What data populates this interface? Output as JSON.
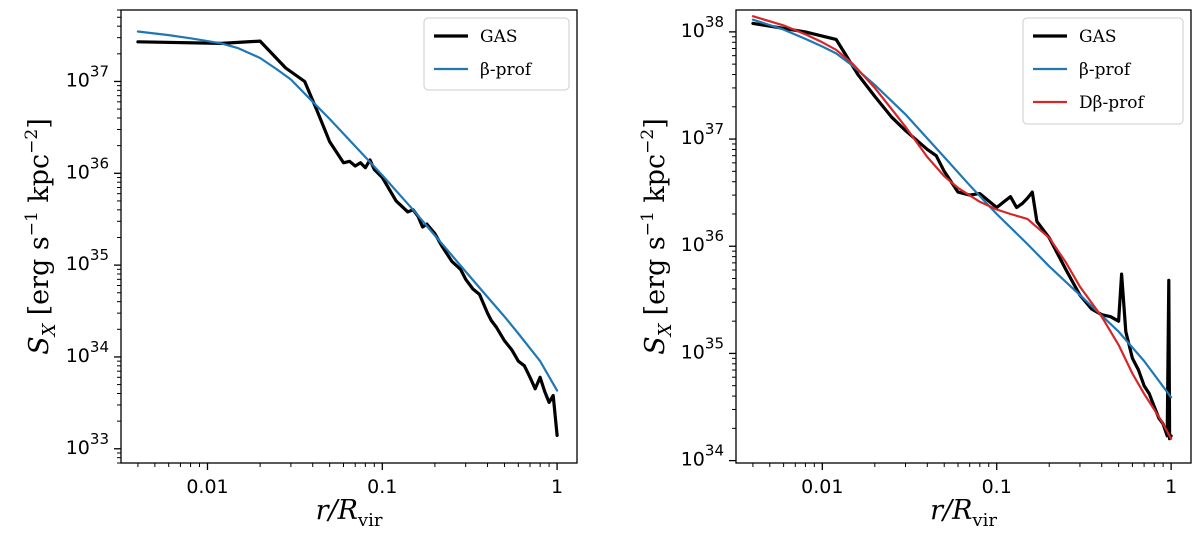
{
  "chart_data": [
    {
      "type": "line",
      "xscale": "log",
      "yscale": "log",
      "xlim": [
        0.0032,
        1.3
      ],
      "ylim": [
        7e+32,
        6e+37
      ],
      "x_ticks": [
        {
          "value": 0.01,
          "label": "0.01"
        },
        {
          "value": 0.1,
          "label": "0.1"
        },
        {
          "value": 1,
          "label": "1"
        }
      ],
      "y_ticks": [
        {
          "value": 1e+33,
          "base": "10",
          "exp": "33"
        },
        {
          "value": 1e+34,
          "base": "10",
          "exp": "34"
        },
        {
          "value": 1e+35,
          "base": "10",
          "exp": "35"
        },
        {
          "value": 1e+36,
          "base": "10",
          "exp": "36"
        },
        {
          "value": 1e+37,
          "base": "10",
          "exp": "37"
        }
      ],
      "xlabel": {
        "main": "r/R",
        "sub": "vir"
      },
      "ylabel": {
        "main": "S",
        "sub": "X",
        "units": "[erg s",
        "sup1": "−1",
        "mid": " kpc",
        "sup2": "−2",
        "end": "]"
      },
      "legend_position": "top-right",
      "series": [
        {
          "name": "GAS",
          "color": "#000000",
          "x": [
            0.004,
            0.012,
            0.02,
            0.028,
            0.036,
            0.042,
            0.05,
            0.06,
            0.065,
            0.07,
            0.075,
            0.08,
            0.085,
            0.09,
            0.1,
            0.12,
            0.14,
            0.15,
            0.16,
            0.17,
            0.18,
            0.2,
            0.22,
            0.25,
            0.28,
            0.3,
            0.33,
            0.36,
            0.4,
            0.42,
            0.45,
            0.5,
            0.55,
            0.6,
            0.65,
            0.7,
            0.75,
            0.8,
            0.85,
            0.9,
            0.95,
            1.0
          ],
          "y": [
            2.7e+37,
            2.6e+37,
            2.75e+37,
            1.4e+37,
            1e+37,
            5e+36,
            2.2e+36,
            1.3e+36,
            1.35e+36,
            1.2e+36,
            1.3e+36,
            1.15e+36,
            1.4e+36,
            1.1e+36,
            9e+35,
            5e+35,
            3.8e+35,
            4e+35,
            3.4e+35,
            2.6e+35,
            2.8e+35,
            2.2e+35,
            1.6e+35,
            1.1e+35,
            9e+34,
            7e+34,
            5.5e+34,
            4.8e+34,
            3e+34,
            2.5e+34,
            2.1e+34,
            1.5e+34,
            1.2e+34,
            9e+33,
            8e+33,
            6e+33,
            4.5e+33,
            6e+33,
            4.2e+33,
            3.2e+33,
            3.8e+33,
            1.4e+33
          ]
        },
        {
          "name": "β-prof",
          "color": "#1f77b4",
          "x": [
            0.004,
            0.006,
            0.008,
            0.01,
            0.012,
            0.015,
            0.02,
            0.025,
            0.03,
            0.04,
            0.05,
            0.06,
            0.08,
            0.1,
            0.15,
            0.2,
            0.3,
            0.4,
            0.5,
            0.6,
            0.8,
            1.0
          ],
          "y": [
            3.5e+37,
            3.2e+37,
            2.95e+37,
            2.75e+37,
            2.6e+37,
            2.3e+37,
            1.8e+37,
            1.35e+37,
            1.05e+37,
            6e+36,
            3.9e+36,
            2.7e+36,
            1.5e+36,
            9.5e+35,
            4e+35,
            2.1e+35,
            8.5e+34,
            4.5e+34,
            2.75e+34,
            1.8e+34,
            9e+33,
            4.3e+33
          ]
        }
      ]
    },
    {
      "type": "line",
      "xscale": "log",
      "yscale": "log",
      "xlim": [
        0.0032,
        1.3
      ],
      "ylim": [
        9.5e+33,
        1.6e+38
      ],
      "x_ticks": [
        {
          "value": 0.01,
          "label": "0.01"
        },
        {
          "value": 0.1,
          "label": "0.1"
        },
        {
          "value": 1,
          "label": "1"
        }
      ],
      "y_ticks": [
        {
          "value": 1e+34,
          "base": "10",
          "exp": "34"
        },
        {
          "value": 1e+35,
          "base": "10",
          "exp": "35"
        },
        {
          "value": 1e+36,
          "base": "10",
          "exp": "36"
        },
        {
          "value": 1e+37,
          "base": "10",
          "exp": "37"
        },
        {
          "value": 1e+38,
          "base": "10",
          "exp": "38"
        }
      ],
      "xlabel": {
        "main": "r/R",
        "sub": "vir"
      },
      "ylabel": {
        "main": "S",
        "sub": "X",
        "units": "[erg s",
        "sup1": "−1",
        "mid": " kpc",
        "sup2": "−2",
        "end": "]"
      },
      "legend_position": "top-right",
      "series": [
        {
          "name": "GAS",
          "color": "#000000",
          "x": [
            0.004,
            0.008,
            0.012,
            0.016,
            0.02,
            0.025,
            0.03,
            0.04,
            0.045,
            0.05,
            0.06,
            0.07,
            0.08,
            0.1,
            0.11,
            0.12,
            0.13,
            0.14,
            0.15,
            0.16,
            0.17,
            0.2,
            0.25,
            0.3,
            0.35,
            0.4,
            0.45,
            0.5,
            0.52,
            0.55,
            0.6,
            0.65,
            0.7,
            0.75,
            0.8,
            0.85,
            0.9,
            0.95,
            0.97,
            0.98,
            1.0
          ],
          "y": [
            1.2e+38,
            1e+38,
            8.5e+37,
            4e+37,
            2.5e+37,
            1.6e+37,
            1.2e+37,
            8e+36,
            7e+36,
            5e+36,
            3.2e+36,
            3e+36,
            3.1e+36,
            2.3e+36,
            2.6e+36,
            2.9e+36,
            2.3e+36,
            2.5e+36,
            2.8e+36,
            3.2e+36,
            1.7e+36,
            1.2e+36,
            6e+35,
            3.5e+35,
            2.6e+35,
            2.3e+35,
            2.2e+35,
            2e+35,
            5.5e+35,
            1.6e+35,
            9e+34,
            7e+34,
            5e+34,
            4.2e+34,
            3.2e+34,
            2.5e+34,
            2.2e+34,
            1.7e+34,
            4.8e+35,
            1.6e+34,
            1.7e+34
          ]
        },
        {
          "name": "β-prof",
          "color": "#1f77b4",
          "x": [
            0.004,
            0.006,
            0.008,
            0.01,
            0.012,
            0.015,
            0.02,
            0.03,
            0.05,
            0.07,
            0.1,
            0.15,
            0.2,
            0.3,
            0.5,
            0.7,
            1.0
          ],
          "y": [
            1.3e+38,
            1.05e+38,
            8.6e+37,
            7.3e+37,
            6.3e+37,
            4.8e+37,
            3.2e+37,
            1.7e+37,
            6.8e+36,
            3.7e+36,
            2e+36,
            1.05e+36,
            6.5e+35,
            3.5e+35,
            1.6e+35,
            8.5e+34,
            3.9e+34
          ]
        },
        {
          "name": "Dβ-prof",
          "color": "#d62728",
          "x": [
            0.004,
            0.006,
            0.008,
            0.01,
            0.012,
            0.015,
            0.02,
            0.025,
            0.03,
            0.04,
            0.05,
            0.06,
            0.08,
            0.1,
            0.12,
            0.15,
            0.2,
            0.25,
            0.3,
            0.4,
            0.5,
            0.6,
            0.7,
            0.8,
            0.9,
            1.0
          ],
          "y": [
            1.4e+38,
            1.15e+38,
            9.5e+37,
            8e+37,
            6.8e+37,
            5e+37,
            3e+37,
            1.9e+37,
            1.3e+37,
            6.8e+36,
            4.5e+36,
            3.5e+36,
            2.6e+36,
            2.2e+36,
            2e+36,
            1.8e+36,
            1.2e+36,
            7e+35,
            4.2e+35,
            2.2e+35,
            1.2e+35,
            6.5e+34,
            4.2e+34,
            3e+34,
            2.2e+34,
            1.6e+34
          ]
        }
      ]
    }
  ]
}
